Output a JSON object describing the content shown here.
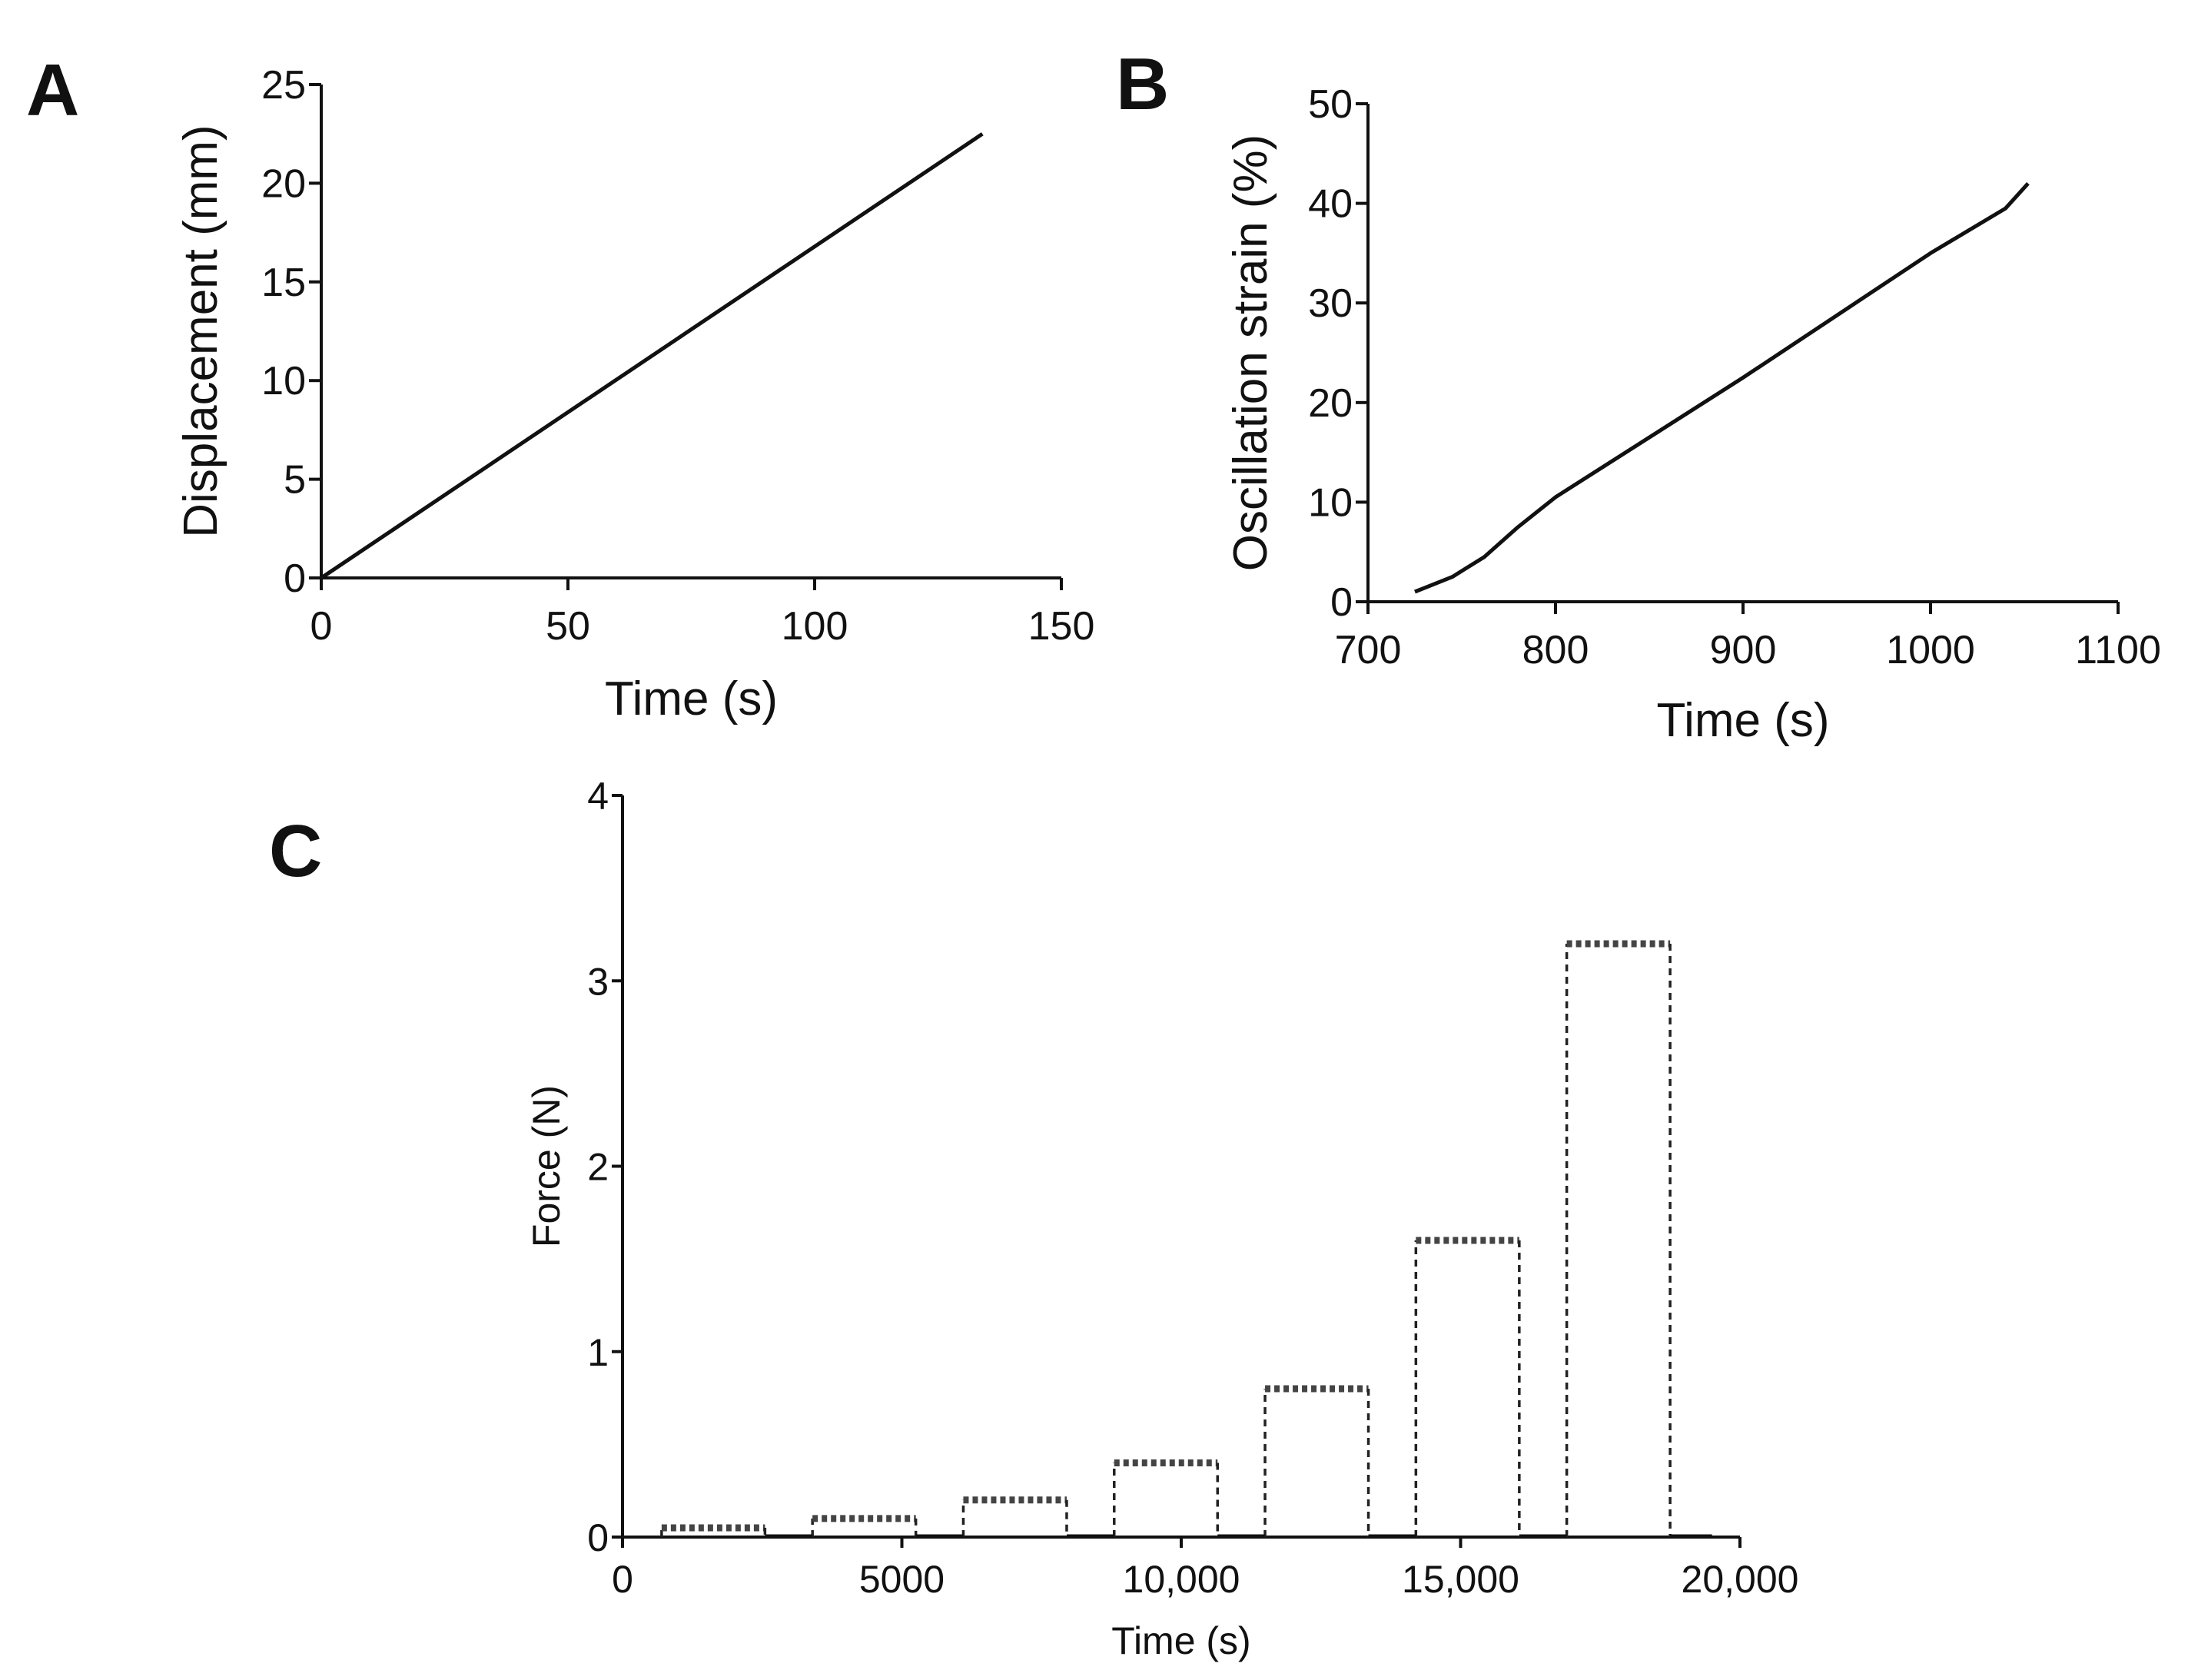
{
  "chart_data": [
    {
      "panel": "A",
      "type": "line",
      "title": "",
      "xlabel": "Time (s)",
      "ylabel": "Displacement (mm)",
      "xlim": [
        0,
        150
      ],
      "ylim": [
        0,
        25
      ],
      "xticks": [
        0,
        50,
        100,
        150
      ],
      "yticks": [
        0,
        5,
        10,
        15,
        20,
        25
      ],
      "xtick_labels": [
        "0",
        "50",
        "100",
        "150"
      ],
      "ytick_labels": [
        "0",
        "5",
        "10",
        "15",
        "20",
        "25"
      ],
      "x": [
        0,
        134
      ],
      "y": [
        0,
        22.5
      ]
    },
    {
      "panel": "B",
      "type": "line",
      "title": "",
      "xlabel": "Time (s)",
      "ylabel": "Oscillation strain (%)",
      "xlim": [
        700,
        1100
      ],
      "ylim": [
        0,
        50
      ],
      "xticks": [
        700,
        800,
        900,
        1000,
        1100
      ],
      "yticks": [
        0,
        10,
        20,
        30,
        40,
        50
      ],
      "xtick_labels": [
        "700",
        "800",
        "900",
        "1000",
        "1100"
      ],
      "ytick_labels": [
        "0",
        "10",
        "20",
        "30",
        "40",
        "50"
      ],
      "x": [
        725,
        745,
        762,
        780,
        800,
        900,
        980,
        1000,
        1040,
        1052
      ],
      "y": [
        1,
        2.5,
        4.5,
        7.5,
        10.5,
        22.5,
        32.5,
        35,
        39.5,
        42
      ]
    },
    {
      "panel": "C",
      "type": "line",
      "title": "",
      "xlabel": "Time (s)",
      "ylabel": "Force (N)",
      "xlim": [
        0,
        20000
      ],
      "ylim": [
        0,
        4
      ],
      "xticks": [
        0,
        5000,
        10000,
        15000,
        20000
      ],
      "yticks": [
        0,
        1,
        2,
        3,
        4
      ],
      "xtick_labels": [
        "0",
        "5000",
        "10,000",
        "15,000",
        "20,000"
      ],
      "ytick_labels": [
        "0",
        "1",
        "2",
        "3",
        "4"
      ],
      "series": [
        {
          "name": "force steps",
          "style": "dashed",
          "segments": [
            {
              "start": 700,
              "end": 2550,
              "force": 0.05
            },
            {
              "start": 3400,
              "end": 5250,
              "force": 0.1
            },
            {
              "start": 6100,
              "end": 7950,
              "force": 0.2
            },
            {
              "start": 8800,
              "end": 10650,
              "force": 0.4
            },
            {
              "start": 11500,
              "end": 13350,
              "force": 0.8
            },
            {
              "start": 14200,
              "end": 16050,
              "force": 1.6
            },
            {
              "start": 16900,
              "end": 18750,
              "force": 3.2
            }
          ]
        }
      ],
      "rest_gaps": [
        [
          2550,
          3400
        ],
        [
          5250,
          6100
        ],
        [
          7950,
          8800
        ],
        [
          10650,
          11500
        ],
        [
          13350,
          14200
        ],
        [
          16050,
          16900
        ],
        [
          18750,
          19500
        ]
      ]
    }
  ]
}
